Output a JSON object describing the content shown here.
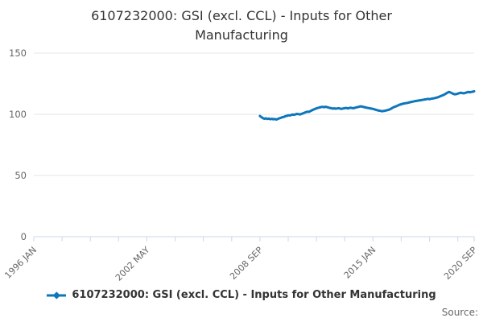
{
  "header": {
    "title": "6107232000: GSI (excl. CCL) - Inputs for Other Manufacturing"
  },
  "legend": {
    "label": "6107232000: GSI (excl. CCL) - Inputs for Other Manufacturing"
  },
  "footer": {
    "source_label": "Source:"
  },
  "colors": {
    "series": "#0e76bc",
    "grid": "#e6e6e6",
    "axis": "#ccd6eb",
    "tick_label": "#666666",
    "title_text": "#333333"
  },
  "chart_data": {
    "type": "line",
    "title": "6107232000: GSI (excl. CCL) - Inputs for Other Manufacturing",
    "xlabel": "",
    "ylabel": "",
    "grid": "horizontal-only",
    "legend_position": "bottom-center",
    "x_axis": {
      "start": "1996 JAN",
      "end": "2020 SEP",
      "total_months": 296,
      "minor_tick_interval_months": 19,
      "labeled_ticks": [
        {
          "month": 0,
          "label": "1996 JAN"
        },
        {
          "month": 76,
          "label": "2002 MAY"
        },
        {
          "month": 152,
          "label": "2008 SEP"
        },
        {
          "month": 228,
          "label": "2015 JAN"
        },
        {
          "month": 296,
          "label": "2020 SEP"
        }
      ]
    },
    "y_axis": {
      "min": 0,
      "max": 150,
      "ticks": [
        0,
        50,
        100,
        150
      ]
    },
    "series": [
      {
        "name": "6107232000: GSI (excl. CCL) - Inputs for Other Manufacturing",
        "color": "#0e76bc",
        "frequency": "monthly",
        "start_date": "2008 SEP",
        "end_date": "2020 SEP",
        "start_month_offset": 152,
        "values": [
          98.6,
          97.7,
          96.9,
          96.4,
          96.7,
          96.2,
          96.5,
          96.0,
          96.3,
          95.9,
          96.2,
          95.7,
          96.2,
          96.7,
          97.1,
          97.6,
          97.8,
          98.4,
          98.7,
          99.2,
          99.0,
          99.5,
          99.8,
          99.6,
          100.0,
          100.3,
          100.1,
          99.9,
          100.4,
          100.8,
          101.3,
          101.8,
          102.2,
          102.0,
          102.7,
          103.3,
          103.9,
          104.4,
          104.9,
          105.2,
          105.6,
          105.9,
          106.1,
          105.8,
          106.2,
          105.9,
          105.5,
          105.2,
          105.0,
          104.7,
          104.9,
          104.6,
          104.8,
          105.0,
          104.6,
          104.5,
          104.8,
          105.0,
          105.2,
          104.9,
          105.1,
          105.3,
          105.1,
          105.0,
          105.4,
          105.7,
          106.0,
          106.3,
          106.5,
          106.2,
          105.9,
          105.6,
          105.3,
          105.1,
          104.9,
          104.7,
          104.4,
          104.1,
          103.7,
          103.3,
          103.0,
          102.8,
          102.5,
          102.7,
          102.9,
          103.2,
          103.5,
          103.9,
          104.5,
          105.2,
          105.9,
          106.3,
          106.8,
          107.4,
          107.9,
          108.2,
          108.6,
          108.9,
          109.1,
          109.3,
          109.6,
          109.9,
          110.2,
          110.4,
          110.7,
          110.9,
          111.1,
          111.3,
          111.5,
          111.7,
          112.0,
          112.2,
          112.4,
          112.6,
          112.4,
          112.7,
          112.9,
          113.1,
          113.4,
          113.7,
          114.1,
          114.6,
          115.1,
          115.6,
          116.2,
          116.9,
          117.6,
          118.3,
          117.9,
          117.3,
          116.7,
          116.3,
          116.5,
          116.9,
          117.3,
          117.6,
          117.4,
          117.2,
          117.5,
          117.9,
          118.3,
          118.0,
          118.2,
          118.5,
          118.8
        ]
      }
    ]
  }
}
